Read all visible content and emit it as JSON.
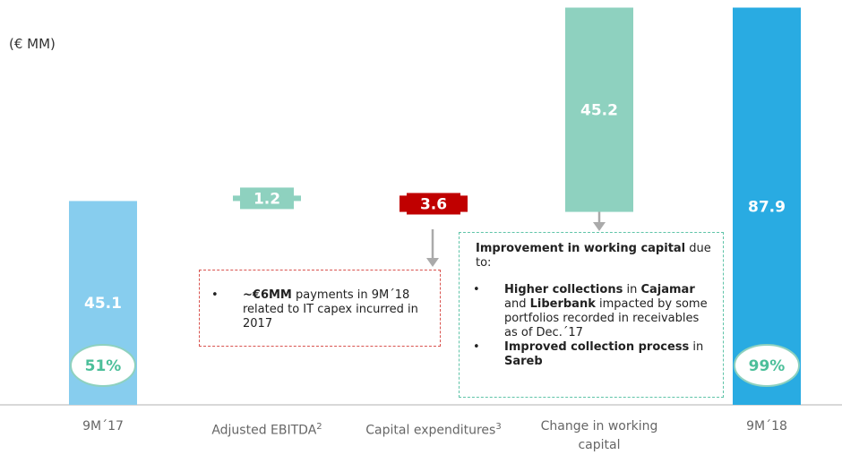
{
  "chart_data": {
    "type": "waterfall",
    "unit_label": "(€ MM)",
    "categories": [
      "9M´17",
      "Adjusted EBITDA",
      "Capital expenditures",
      "Change in working capital",
      "9M´18"
    ],
    "footnote_marks": [
      null,
      "2",
      "3",
      null,
      null
    ],
    "kinds": [
      "total",
      "delta",
      "delta",
      "delta",
      "total"
    ],
    "values": [
      45.1,
      1.2,
      -3.6,
      45.2,
      87.9
    ],
    "value_labels": [
      "45.1",
      "1.2",
      "3.6",
      "45.2",
      "87.9"
    ],
    "colors": [
      "#87cdee",
      "#8ed1bf",
      "#c00000",
      "#8ed1bf",
      "#29abe2"
    ],
    "percentages": [
      51,
      null,
      null,
      null,
      99
    ],
    "percentage_labels": [
      "51%",
      null,
      null,
      null,
      "99%"
    ],
    "ylim": [
      0,
      88
    ],
    "annotations": [
      {
        "color": "#d9534f",
        "paragraphs": [],
        "bullets": [
          [
            {
              "text": "~€6MM",
              "bold": true
            },
            {
              "text": " payments in 9M´18 related to IT capex incurred in 2017",
              "bold": false
            }
          ]
        ]
      },
      {
        "color": "#5fc4a8",
        "paragraphs": [
          [
            {
              "text": "Improvement in working capital",
              "bold": true
            },
            {
              "text": " due to:",
              "bold": false
            }
          ]
        ],
        "bullets": [
          [
            {
              "text": "Higher collections",
              "bold": true
            },
            {
              "text": " in ",
              "bold": false
            },
            {
              "text": "Cajamar",
              "bold": true
            },
            {
              "text": " and ",
              "bold": false
            },
            {
              "text": "Liberbank",
              "bold": true
            },
            {
              "text": " impacted by some portfolios recorded in receivables as of  Dec.´17",
              "bold": false
            }
          ],
          [
            {
              "text": "Improved collection process",
              "bold": true
            },
            {
              "text": " in ",
              "bold": false
            },
            {
              "text": "Sareb",
              "bold": true
            }
          ]
        ]
      }
    ]
  }
}
